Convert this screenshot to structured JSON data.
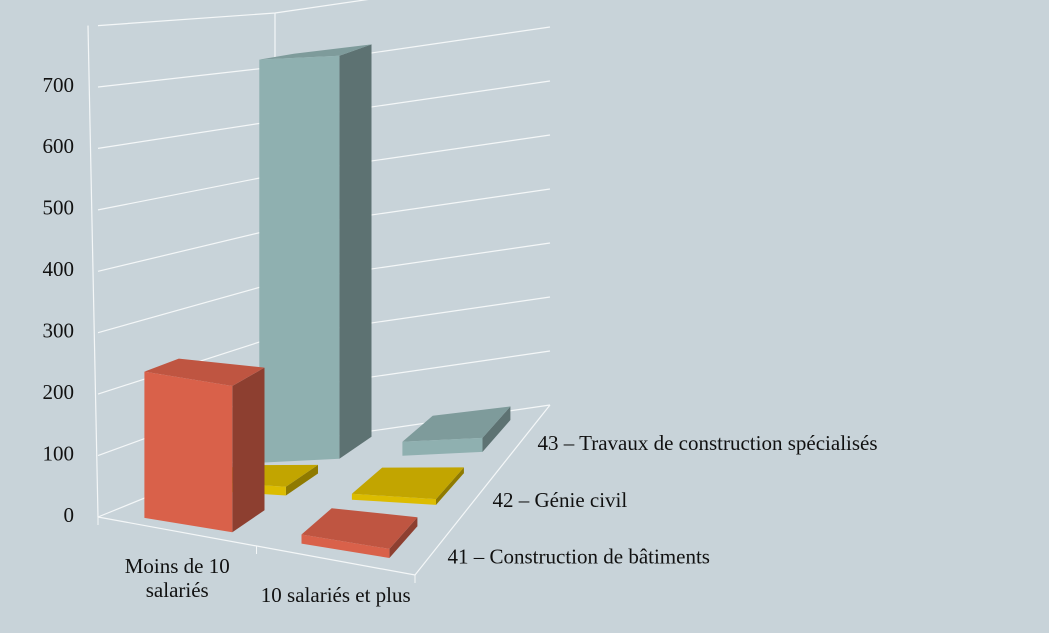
{
  "chart_data": {
    "type": "bar3d",
    "categories": [
      "Moins de 10 salariés",
      "10 salariés et plus"
    ],
    "series": [
      {
        "name": "41 – Construction de bâtiments",
        "color": "#d9614a",
        "values": [
          240,
          15
        ]
      },
      {
        "name": "42 – Génie civil",
        "color": "#dcbc00",
        "values": [
          15,
          10
        ]
      },
      {
        "name": "43 – Travaux de construction spécialisés",
        "color": "#8fb0b0",
        "values": [
          720,
          25
        ]
      }
    ],
    "ylim": [
      0,
      800
    ],
    "yticks": [
      0,
      100,
      200,
      300,
      400,
      500,
      600,
      700
    ],
    "grid": true
  }
}
